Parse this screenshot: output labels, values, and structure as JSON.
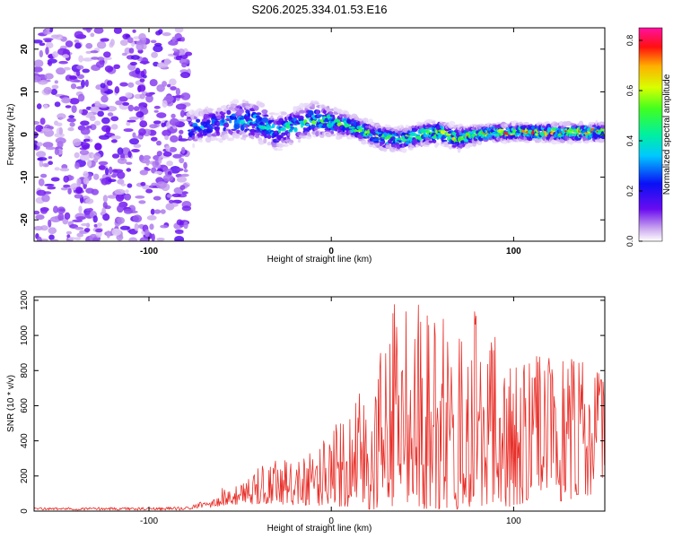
{
  "figure_title": "S206.2025.334.01.53.E16",
  "chart_data": [
    {
      "type": "heatmap",
      "title": "S206.2025.334.01.53.E16",
      "xlabel": "Height of straight line (km)",
      "ylabel": "Frequency (Hz)",
      "xlim": [
        -163,
        150
      ],
      "ylim": [
        -25,
        25
      ],
      "xticks": [
        -100,
        0,
        100
      ],
      "yticks": [
        -20,
        -10,
        0,
        10,
        20
      ],
      "colorbar": {
        "label": "Normalized spectral amplitude",
        "range": [
          0,
          0.85
        ],
        "ticks": [
          0.0,
          0.2,
          0.4,
          0.6,
          0.8
        ]
      },
      "noise_region": {
        "x_range": [
          -163,
          -78
        ],
        "y_range": [
          -25,
          25
        ],
        "amplitude": 0.1
      },
      "signal_track": {
        "x": [
          -78,
          -70,
          -60,
          -50,
          -40,
          -30,
          -20,
          -10,
          0,
          10,
          20,
          30,
          40,
          50,
          60,
          70,
          80,
          90,
          100,
          110,
          120,
          130,
          140,
          150
        ],
        "center_freq": [
          1.2,
          2.0,
          2.5,
          3.5,
          3.0,
          0.5,
          2.0,
          3.5,
          3.0,
          2.0,
          0.5,
          -1.0,
          -1.0,
          0.0,
          0.5,
          -1.0,
          0.0,
          0.5,
          0.5,
          0.5,
          0.5,
          0.5,
          0.5,
          0.5
        ],
        "half_width": [
          3,
          3,
          3,
          3.5,
          3.5,
          3,
          3,
          3,
          2.5,
          2,
          2,
          2,
          2,
          2,
          2,
          2,
          1.5,
          1.5,
          1.5,
          1.5,
          1.5,
          1.5,
          1.5,
          1.5
        ],
        "peak_amplitude": [
          0.35,
          0.35,
          0.4,
          0.4,
          0.45,
          0.45,
          0.5,
          0.6,
          0.6,
          0.6,
          0.6,
          0.65,
          0.6,
          0.65,
          0.7,
          0.7,
          0.75,
          0.8,
          0.8,
          0.8,
          0.85,
          0.85,
          0.85,
          0.8
        ]
      }
    },
    {
      "type": "line",
      "xlabel": "Height of straight line (km)",
      "ylabel": "SNR (10 * v/v)",
      "xlim": [
        -163,
        150
      ],
      "ylim": [
        0,
        1220
      ],
      "xticks": [
        -100,
        0,
        100
      ],
      "yticks": [
        0,
        200,
        400,
        600,
        800,
        1000,
        1200
      ],
      "series": [
        {
          "name": "SNR",
          "color": "#e8302a",
          "envelope": {
            "x": [
              -163,
              -130,
              -100,
              -80,
              -66,
              -60,
              -50,
              -40,
              -30,
              -20,
              -10,
              0,
              10,
              20,
              30,
              40,
              50,
              60,
              70,
              80,
              90,
              100,
              110,
              120,
              130,
              140,
              150
            ],
            "high": [
              20,
              22,
              22,
              25,
              75,
              130,
              150,
              250,
              330,
              260,
              360,
              460,
              640,
              730,
              1200,
              1150,
              1200,
              1100,
              1050,
              1150,
              1000,
              950,
              900,
              900,
              880,
              850,
              750
            ],
            "low": [
              5,
              5,
              5,
              5,
              20,
              30,
              40,
              40,
              40,
              30,
              30,
              30,
              20,
              10,
              10,
              10,
              10,
              10,
              10,
              10,
              10,
              30,
              40,
              50,
              60,
              80,
              150
            ]
          }
        }
      ]
    }
  ]
}
